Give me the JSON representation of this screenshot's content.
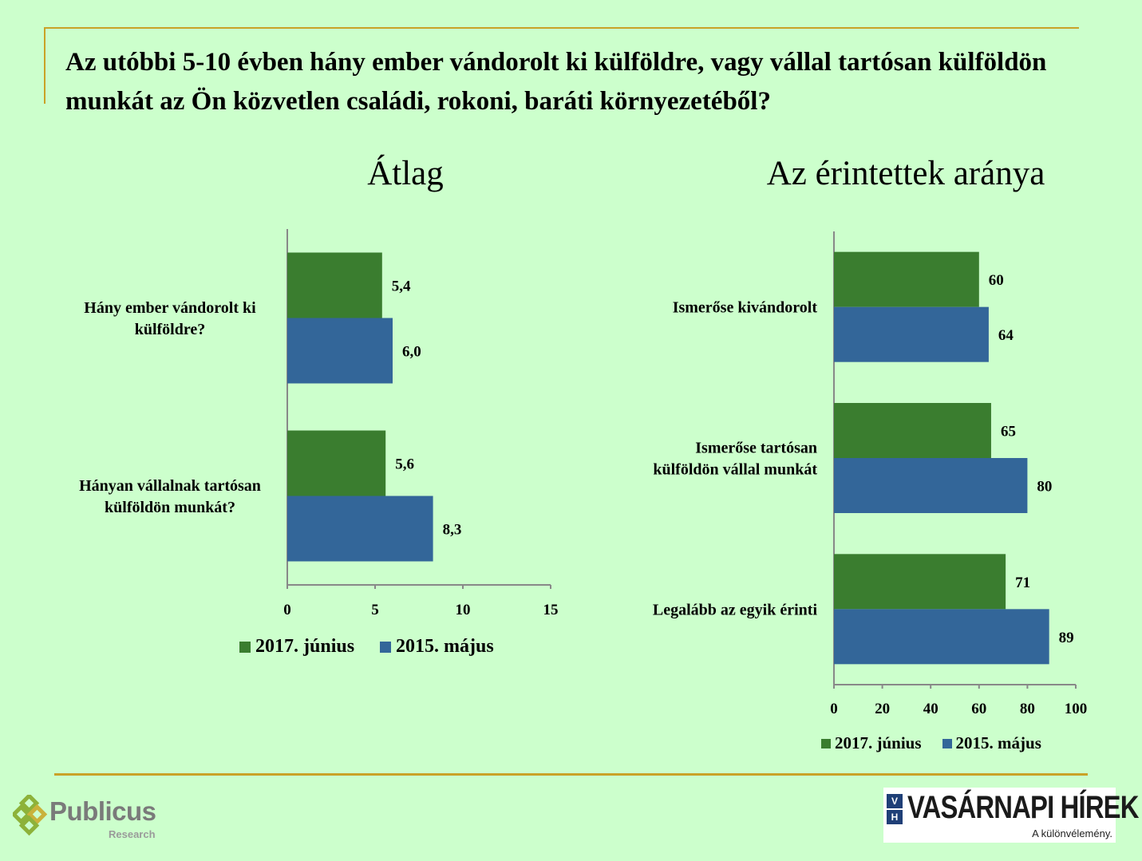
{
  "title": "Az utóbbi 5-10 évben hány ember vándorolt ki külföldre, vagy vállal tartósan külföldön munkát az Ön közvetlen családi, rokoni, baráti környezetéből?",
  "colors": {
    "background": "#ccffcc",
    "frame": "#c9a227",
    "series_2017": "#3a7d2f",
    "series_2015": "#336699"
  },
  "left_section_title": "Átlag",
  "right_section_title": "Az érintettek aránya",
  "chart_data": [
    {
      "type": "bar",
      "orientation": "horizontal",
      "title": "Átlag",
      "categories": [
        [
          "Hány ember vándorolt ki",
          "külföldre?"
        ],
        [
          "Hányan vállalnak tartósan",
          "külföldön munkát?"
        ]
      ],
      "series": [
        {
          "name": "2017. június",
          "color": "#3a7d2f",
          "values": [
            5.4,
            5.6
          ],
          "labels": [
            "5,4",
            "5,6"
          ]
        },
        {
          "name": "2015. május",
          "color": "#336699",
          "values": [
            6.0,
            8.3
          ],
          "labels": [
            "6,0",
            "8,3"
          ]
        }
      ],
      "xlim": [
        0,
        15
      ],
      "ticks": [
        0,
        5,
        10,
        15
      ],
      "grid": false,
      "legend": "bottom"
    },
    {
      "type": "bar",
      "orientation": "horizontal",
      "title": "Az érintettek aránya",
      "categories": [
        [
          "Ismerőse kivándorolt"
        ],
        [
          "Ismerőse tartósan",
          "külföldön vállal munkát"
        ],
        [
          "Legalább az egyik érinti"
        ]
      ],
      "series": [
        {
          "name": "2017. június",
          "color": "#3a7d2f",
          "values": [
            60,
            65,
            71
          ],
          "labels": [
            "60",
            "65",
            "71"
          ]
        },
        {
          "name": "2015. május",
          "color": "#336699",
          "values": [
            64,
            80,
            89
          ],
          "labels": [
            "64",
            "80",
            "89"
          ]
        }
      ],
      "xlim": [
        0,
        100
      ],
      "ticks": [
        0,
        20,
        40,
        60,
        80,
        100
      ],
      "grid": false,
      "legend": "bottom"
    }
  ],
  "legend_left": [
    {
      "label": "2017. június",
      "color": "#3a7d2f"
    },
    {
      "label": "2015. május",
      "color": "#336699"
    }
  ],
  "legend_right": [
    {
      "label": "2017. június",
      "color": "#3a7d2f"
    },
    {
      "label": "2015. május",
      "color": "#336699"
    }
  ],
  "logos": {
    "publicus_name": "Publicus",
    "publicus_sub": "Research",
    "vh_badge_top": "V",
    "vh_badge_bottom": "H",
    "vh_name": "VASÁRNAPI HÍREK",
    "vh_tagline": "A különvélemény."
  }
}
